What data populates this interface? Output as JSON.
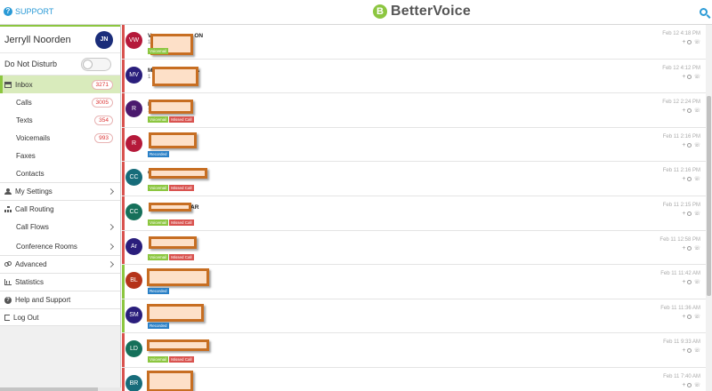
{
  "header": {
    "support_label": "SUPPORT",
    "brand_name": "BetterVoice",
    "brand_logo_letter": "B"
  },
  "sidebar": {
    "user_name": "Jerryll Noorden",
    "user_initials": "JN",
    "dnd_label": "Do Not Disturb",
    "dnd_enabled": false,
    "items": [
      {
        "label": "Inbox",
        "count": "3271"
      },
      {
        "label": "Calls",
        "count": "3005"
      },
      {
        "label": "Texts",
        "count": "354"
      },
      {
        "label": "Voicemails",
        "count": "993"
      },
      {
        "label": "Faxes"
      },
      {
        "label": "Contacts"
      },
      {
        "label": "My Settings"
      },
      {
        "label": "Call Routing"
      },
      {
        "label": "Call Flows"
      },
      {
        "label": "Conference Rooms"
      },
      {
        "label": "Advanced"
      },
      {
        "label": "Statistics"
      },
      {
        "label": "Help and Support"
      },
      {
        "label": "Log Out"
      }
    ]
  },
  "messages": [
    {
      "initials": "VW",
      "color": "#b5193a",
      "name": "V",
      "name_tail": "ON",
      "sub": "1",
      "time": "Feb 12 4:18 PM",
      "tags": [
        "Voicemail"
      ],
      "stripe": "red"
    },
    {
      "initials": "MV",
      "color": "#2a1e7c",
      "name": "M",
      "name_tail": "A",
      "sub": "1 (",
      "time": "Feb 12 4:12 PM",
      "tags": [],
      "stripe": "red"
    },
    {
      "initials": "R",
      "color": "#4b1a6e",
      "name": "R",
      "name_tail": "",
      "sub": "1",
      "time": "Feb 12 2:24 PM",
      "tags": [
        "Voicemail",
        "Missed Call"
      ],
      "stripe": "red"
    },
    {
      "initials": "R",
      "color": "#b5193a",
      "name": "",
      "name_tail": "",
      "sub": "",
      "time": "Feb 11 2:16 PM",
      "tags": [
        "Recorded"
      ],
      "stripe": "red"
    },
    {
      "initials": "CC",
      "color": "#176c7a",
      "name": "C",
      "name_tail": "R",
      "sub": "",
      "time": "Feb 11 2:16 PM",
      "tags": [
        "Voicemail",
        "Missed Call"
      ],
      "stripe": "red"
    },
    {
      "initials": "CC",
      "color": "#15705a",
      "name": "",
      "name_tail": "AR",
      "sub": "",
      "time": "Feb 11 2:15 PM",
      "tags": [
        "Voicemail",
        "Missed Call"
      ],
      "stripe": "red"
    },
    {
      "initials": "Ar",
      "color": "#2a1e7c",
      "name": "",
      "name_tail": "",
      "sub": "",
      "time": "Feb 11 12:58 PM",
      "tags": [
        "Voicemail",
        "Missed Call"
      ],
      "stripe": "red"
    },
    {
      "initials": "BL",
      "color": "#b5331a",
      "name": "",
      "name_tail": "",
      "sub": "",
      "time": "Feb 11 11:42 AM",
      "tags": [
        "Recorded"
      ],
      "stripe": "green"
    },
    {
      "initials": "SM",
      "color": "#2a1e7c",
      "name": "",
      "name_tail": "",
      "sub": "",
      "time": "Feb 11 11:36 AM",
      "tags": [
        "Recorded"
      ],
      "stripe": "green"
    },
    {
      "initials": "LD",
      "color": "#15705a",
      "name": "",
      "name_tail": "",
      "sub": "",
      "time": "Feb 11 9:33 AM",
      "tags": [
        "Voicemail",
        "Missed Call"
      ],
      "stripe": "red"
    },
    {
      "initials": "BR",
      "color": "#176c7a",
      "name": "",
      "name_tail": "",
      "sub": "",
      "time": "Feb 11 7:40 AM",
      "tags": [
        "Voicemail",
        "Missed Call"
      ],
      "stripe": "red"
    }
  ],
  "tag_labels": {
    "Voicemail": "Voicemail",
    "Missed Call": "Missed Call",
    "Recorded": "Recorded"
  },
  "action_plus": "+",
  "action_phone": "☏"
}
